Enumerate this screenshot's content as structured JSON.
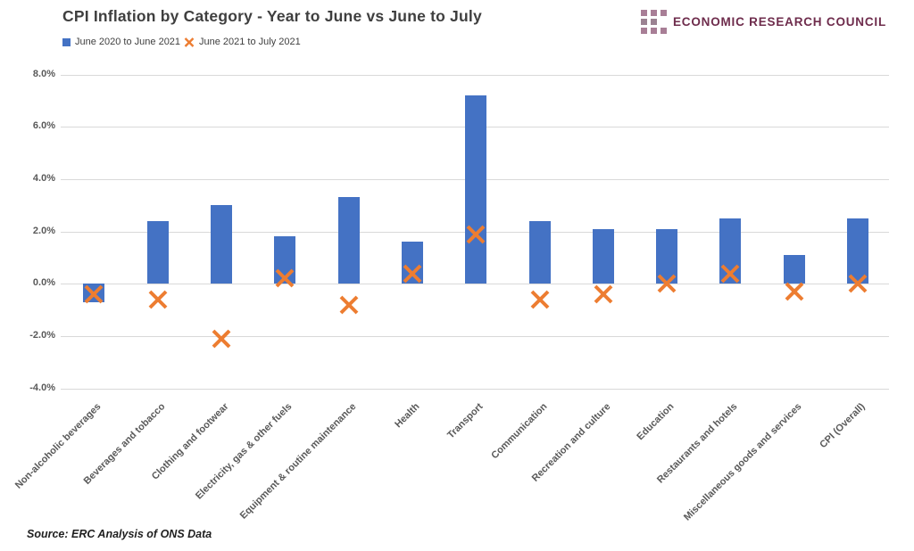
{
  "header": {
    "logo_text": "ECONOMIC RESEARCH COUNCIL",
    "logo_text_color": "#6e2c4c",
    "logo_mark_color_primary": "#a87e96",
    "logo_mark_color_muted": "#9b8292"
  },
  "legend": [
    {
      "label": "June 2020 to June 2021",
      "marker": "square",
      "color": "#4472C4"
    },
    {
      "label": "June 2021 to July 2021",
      "marker": "x",
      "color": "#ED7D31"
    }
  ],
  "source_note": "Source: ERC Analysis of ONS Data",
  "chart_data": {
    "type": "bar",
    "title": "CPI Inflation by Category - Year to June vs June to July",
    "categories": [
      "Non-alcoholic beverages",
      "Beverages and tobacco",
      "Clothing and footwear",
      "Electricity, gas & other fuels",
      "Equipment & routine maintenance",
      "Health",
      "Transport",
      "Communication",
      "Recreation and culture",
      "Education",
      "Restaurants and hotels",
      "Miscellaneous goods and services",
      "CPI (Overall)"
    ],
    "series": [
      {
        "name": "June 2020 to June 2021",
        "render": "bar",
        "color": "#4472C4",
        "values": [
          -0.7,
          2.4,
          3.0,
          1.8,
          3.3,
          1.6,
          7.2,
          2.4,
          2.1,
          2.1,
          2.5,
          1.1,
          2.5
        ]
      },
      {
        "name": "June 2021 to July 2021",
        "render": "x-marker",
        "color": "#ED7D31",
        "values": [
          -0.4,
          -0.6,
          -2.1,
          0.2,
          -0.8,
          0.4,
          1.9,
          -0.6,
          -0.4,
          0.0,
          0.4,
          -0.3,
          0.0
        ]
      }
    ],
    "ylabel": "",
    "xlabel": "",
    "ylim": [
      -4,
      8
    ],
    "ytick_values": [
      8,
      6,
      4,
      2,
      0,
      -2,
      -4
    ],
    "ytick_labels": [
      "8.0%",
      "6.0%",
      "4.0%",
      "2.0%",
      "0.0%",
      "-2.0%",
      "-4.0%"
    ],
    "grid": true,
    "legend_position": "top-left"
  }
}
